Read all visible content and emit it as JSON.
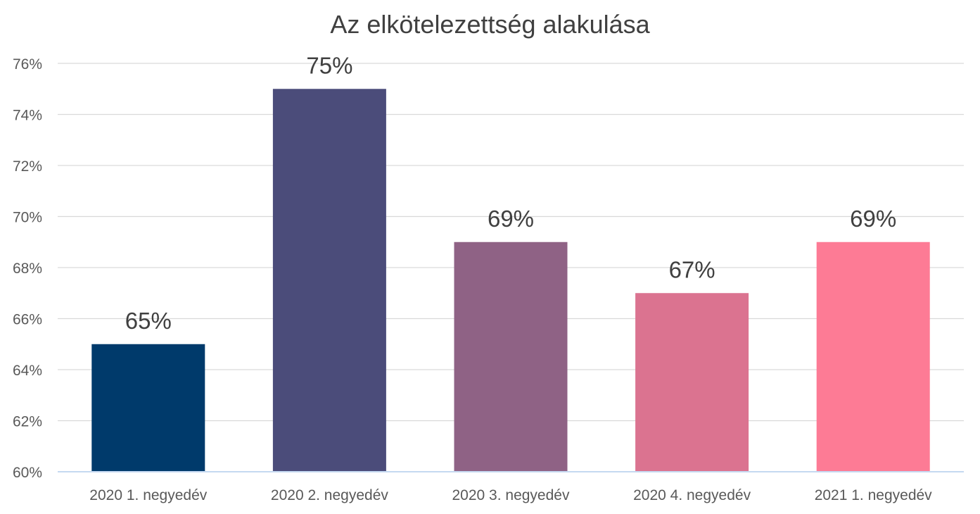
{
  "chart_data": {
    "type": "bar",
    "title": "Az elkötelezettség alakulása",
    "xlabel": "",
    "ylabel": "",
    "categories": [
      "2020 1. negyedév",
      "2020 2. negyedév",
      "2020 3. negyedév",
      "2020 4. negyedév",
      "2021 1. negyedév"
    ],
    "values": [
      65,
      75,
      69,
      67,
      69
    ],
    "data_labels": [
      "65%",
      "75%",
      "69%",
      "67%",
      "69%"
    ],
    "bar_colors": [
      "#003a6b",
      "#4b4c7a",
      "#8f6285",
      "#db7390",
      "#fd7b95"
    ],
    "ylim": [
      60,
      76
    ],
    "yticks": [
      60,
      62,
      64,
      66,
      68,
      70,
      72,
      74,
      76
    ],
    "ytick_labels": [
      "60%",
      "62%",
      "64%",
      "66%",
      "68%",
      "70%",
      "72%",
      "74%",
      "76%"
    ],
    "grid": true,
    "legend": "none"
  }
}
